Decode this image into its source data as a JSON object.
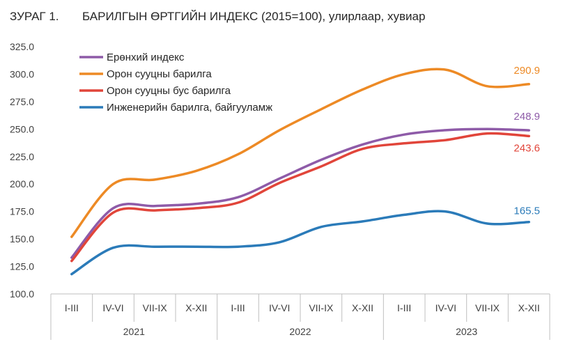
{
  "title": {
    "figure_number": "ЗУРАГ 1.",
    "text": "БАРИЛГЫН ӨРТГИЙН ИНДЕКС (2015=100), улирлаар, хувиар"
  },
  "chart_data": {
    "type": "line",
    "categories": [
      "I-III",
      "IV-VI",
      "VII-IX",
      "X-XII",
      "I-III",
      "IV-VI",
      "VII-IX",
      "X-XII",
      "I-III",
      "IV-VI",
      "VII-IX",
      "X-XII"
    ],
    "groups": [
      {
        "label": "2021",
        "span": 4
      },
      {
        "label": "2022",
        "span": 4
      },
      {
        "label": "2023",
        "span": 4
      }
    ],
    "ylim": [
      100,
      325
    ],
    "yticks": [
      "100.0",
      "125.0",
      "150.0",
      "175.0",
      "200.0",
      "225.0",
      "250.0",
      "275.0",
      "300.0",
      "325.0"
    ],
    "legend_position": "top-left",
    "series": [
      {
        "name": "Ерөнхий индекс",
        "color": "#8E5BA8",
        "values": [
          133,
          178,
          180,
          182,
          188,
          205,
          222,
          236,
          245,
          249,
          250,
          248.9
        ],
        "end_label": "248.9"
      },
      {
        "name": "Орон сууцны барилга",
        "color": "#ED8A25",
        "values": [
          152,
          200,
          204,
          212,
          227,
          249,
          268,
          286,
          300,
          304,
          289,
          290.9
        ],
        "end_label": "290.9"
      },
      {
        "name": "Орон сууцны бус барилга",
        "color": "#E1453A",
        "values": [
          130,
          174,
          176,
          178,
          183,
          201,
          216,
          232,
          237,
          240,
          246,
          243.6
        ],
        "end_label": "243.6"
      },
      {
        "name": "Инженерийн барилга, байгууламж",
        "color": "#2B7BB9",
        "values": [
          118,
          142,
          143,
          143,
          143,
          147,
          161,
          166,
          172,
          175,
          164,
          165.5
        ],
        "end_label": "165.5"
      }
    ]
  }
}
